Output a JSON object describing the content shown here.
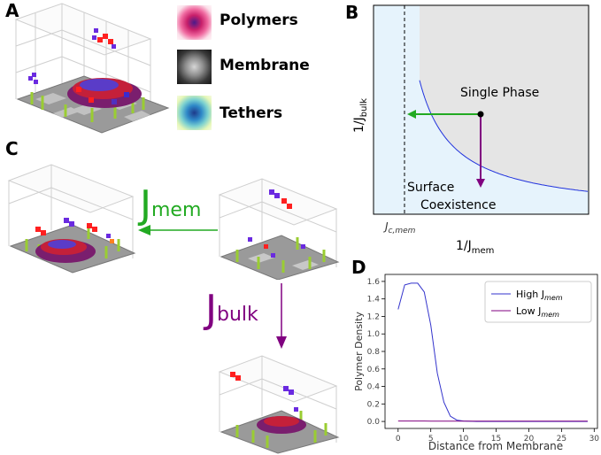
{
  "panels": {
    "a": {
      "letter": "A"
    },
    "b": {
      "letter": "B"
    },
    "c": {
      "letter": "C"
    },
    "d": {
      "letter": "D"
    }
  },
  "legend_a": {
    "polymers": "Polymers",
    "membrane": "Membrane",
    "tethers": "Tethers"
  },
  "panel_c": {
    "jmem_label": {
      "main": "J",
      "sub": "mem"
    },
    "jbulk_label": {
      "main": "J",
      "sub": "bulk"
    },
    "jmem_color": "#22aa22",
    "jbulk_color": "#800080"
  },
  "chart_data": [
    {
      "type": "line",
      "panel": "B",
      "xlabel": {
        "main": "1/J",
        "sub": "mem"
      },
      "ylabel": {
        "main": "1/J",
        "sub": "bulk"
      },
      "tick_x": {
        "main": "J",
        "sub": "c,mem"
      },
      "regions": [
        {
          "name": "Single Phase",
          "label": "Single Phase",
          "color": "#e5e5e5"
        },
        {
          "name": "Surface Coexistence",
          "label": [
            "Surface",
            "Coexistence"
          ],
          "color": "#e6f3fc"
        }
      ],
      "boundary_color": "#2233dd",
      "arrows": [
        {
          "direction": "left",
          "color": "#22aa22"
        },
        {
          "direction": "down",
          "color": "#800080"
        }
      ]
    },
    {
      "type": "line",
      "panel": "D",
      "xlabel": "Distance from Membrane",
      "ylabel": "Polymer Density",
      "xlim": [
        -2,
        30.5
      ],
      "ylim": [
        -0.08,
        1.68
      ],
      "xticks": [
        0,
        5,
        10,
        15,
        20,
        25,
        30
      ],
      "yticks": [
        0.0,
        0.2,
        0.4,
        0.6,
        0.8,
        1.0,
        1.2,
        1.4,
        1.6
      ],
      "legend_position": "top-right",
      "series": [
        {
          "name": "High J",
          "name_sub": "mem",
          "color": "#3333cc",
          "x": [
            0,
            1,
            2,
            3,
            4,
            5,
            6,
            7,
            8,
            9,
            10,
            11,
            12,
            13,
            14,
            15,
            16,
            17,
            18,
            19,
            20,
            21,
            22,
            23,
            24,
            25,
            26,
            27,
            28,
            29
          ],
          "values": [
            1.28,
            1.56,
            1.58,
            1.58,
            1.48,
            1.1,
            0.55,
            0.22,
            0.06,
            0.015,
            0.005,
            0.002,
            0,
            0,
            0,
            0,
            0,
            0,
            0,
            0,
            0,
            0,
            0,
            0,
            0,
            0,
            0,
            0,
            0,
            0
          ]
        },
        {
          "name": "Low J",
          "name_sub": "mem",
          "color": "#800080",
          "x": [
            0,
            1,
            2,
            3,
            4,
            5,
            6,
            7,
            8,
            9,
            10,
            11,
            12,
            13,
            14,
            15,
            16,
            17,
            18,
            19,
            20,
            21,
            22,
            23,
            24,
            25,
            26,
            27,
            28,
            29
          ],
          "values": [
            0.005,
            0.005,
            0.005,
            0.005,
            0.005,
            0.004,
            0.004,
            0.004,
            0.004,
            0.003,
            0.003,
            0.003,
            0.003,
            0.003,
            0.003,
            0.003,
            0.003,
            0.003,
            0.003,
            0.003,
            0.003,
            0.003,
            0.003,
            0.003,
            0.003,
            0.003,
            0.003,
            0.003,
            0.003,
            0.003
          ]
        }
      ]
    }
  ]
}
